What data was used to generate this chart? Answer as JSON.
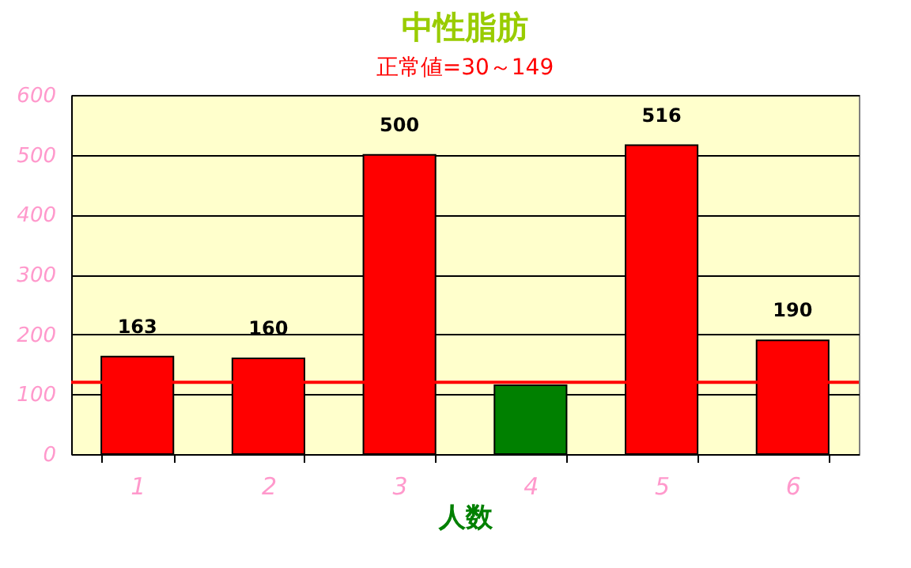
{
  "chart_data": {
    "type": "bar",
    "title": "中性脂肪",
    "xlabel": "人数",
    "categories": [
      "1",
      "2",
      "3",
      "4",
      "5",
      "6"
    ],
    "values": [
      163,
      160,
      500,
      115,
      516,
      190
    ],
    "colors": [
      "#ff0000",
      "#ff0000",
      "#ff0000",
      "#008000",
      "#ff0000",
      "#ff0000"
    ],
    "value_labels": [
      "163",
      "160",
      "500",
      null,
      "516",
      "190"
    ],
    "ylim": [
      0,
      600
    ],
    "yticks": [
      0,
      100,
      200,
      300,
      400,
      500,
      600
    ],
    "grid": "y",
    "ref_lines": [
      {
        "axis": "y",
        "value": 120,
        "color": "#ff0000"
      }
    ],
    "annotations": [
      "正常値=30～149"
    ]
  }
}
